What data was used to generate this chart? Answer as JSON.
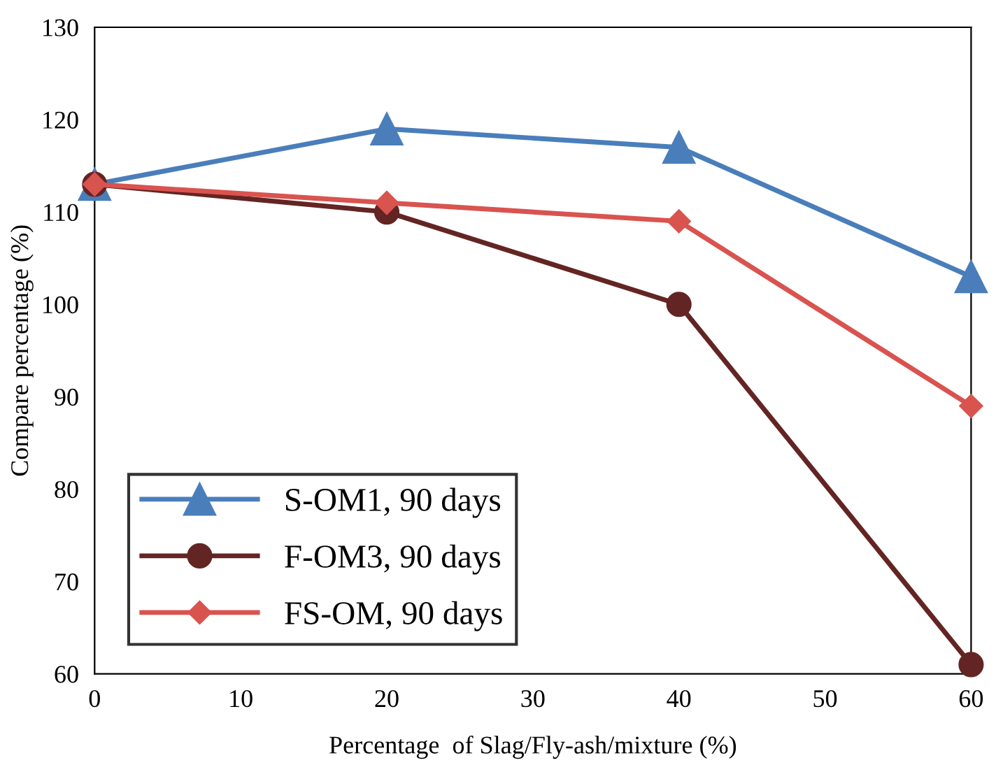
{
  "chart_data": {
    "type": "line",
    "xlabel": "Percentage  of Slag/Fly-ash/mixture (%)",
    "ylabel": "Compare percentage (%)",
    "x": [
      0,
      20,
      40,
      60
    ],
    "series": [
      {
        "name": "S-OM1, 90 days",
        "color": "#4a7ebb",
        "marker": "triangle",
        "values": [
          113,
          119,
          117,
          103
        ]
      },
      {
        "name": "F-OM3, 90 days",
        "color": "#632523",
        "marker": "circle",
        "values": [
          113,
          110,
          100,
          61
        ]
      },
      {
        "name": "FS-OM, 90 days",
        "color": "#d9534f",
        "marker": "diamond",
        "values": [
          113,
          111,
          109,
          89
        ]
      }
    ],
    "xlim": [
      0,
      60
    ],
    "xticks": [
      0,
      10,
      20,
      30,
      40,
      50,
      60
    ],
    "ylim": [
      60,
      130
    ],
    "yticks": [
      60,
      70,
      80,
      90,
      100,
      110,
      120,
      130
    ],
    "legend": "bottom left",
    "line_style": "solid"
  }
}
